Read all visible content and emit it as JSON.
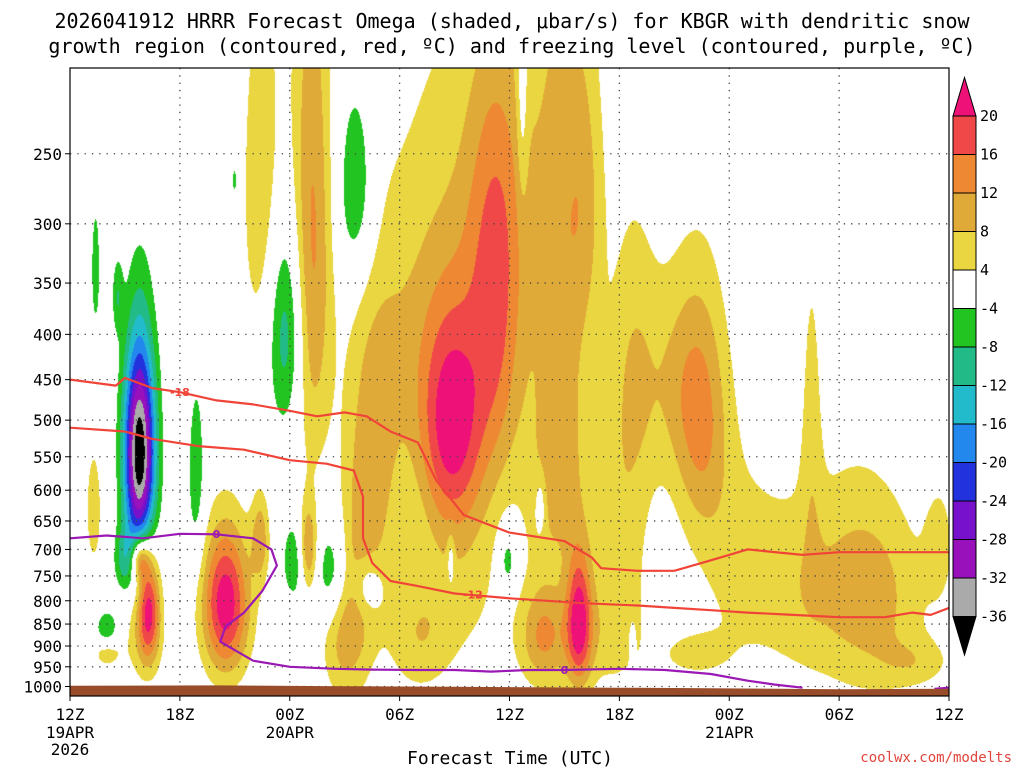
{
  "chart_data": {
    "type": "heatmap",
    "title_line1": "2026041912 HRRR Forecast Omega (shaded, μbar/s) for KBGR with dendritic snow",
    "title_line2": "growth region (contoured, red, ºC) and freezing level (contoured, purple, ºC)",
    "xlabel": "Forecast Time (UTC)",
    "ylabel": "",
    "credit": "coolwx.com/modelts",
    "x_range_hours": [
      0,
      48
    ],
    "y_range_hPa": [
      200,
      1025
    ],
    "x_ticks": [
      {
        "hour": 0,
        "label": "12Z",
        "sub1": "19APR",
        "sub2": "2026"
      },
      {
        "hour": 6,
        "label": "18Z"
      },
      {
        "hour": 12,
        "label": "00Z",
        "sub1": "20APR"
      },
      {
        "hour": 18,
        "label": "06Z"
      },
      {
        "hour": 24,
        "label": "12Z"
      },
      {
        "hour": 30,
        "label": "18Z"
      },
      {
        "hour": 36,
        "label": "00Z",
        "sub1": "21APR"
      },
      {
        "hour": 42,
        "label": "06Z"
      },
      {
        "hour": 48,
        "label": "12Z"
      }
    ],
    "y_ticks": [
      {
        "p": 250,
        "label": "250"
      },
      {
        "p": 300,
        "label": "300"
      },
      {
        "p": 350,
        "label": "350"
      },
      {
        "p": 400,
        "label": "400"
      },
      {
        "p": 450,
        "label": "450"
      },
      {
        "p": 500,
        "label": "500"
      },
      {
        "p": 550,
        "label": "550"
      },
      {
        "p": 600,
        "label": "600"
      },
      {
        "p": 650,
        "label": "650"
      },
      {
        "p": 700,
        "label": "700"
      },
      {
        "p": 750,
        "label": "750"
      },
      {
        "p": 800,
        "label": "800"
      },
      {
        "p": 850,
        "label": "850"
      },
      {
        "p": 900,
        "label": "900"
      },
      {
        "p": 950,
        "label": "950"
      },
      {
        "p": 1000,
        "label": "1000"
      }
    ],
    "colorbar": {
      "labels": [
        "20",
        "16",
        "12",
        "8",
        "4",
        "-4",
        "-8",
        "-12",
        "-16",
        "-20",
        "-24",
        "-28",
        "-32",
        "-36"
      ],
      "bins": [
        {
          "lo": 20,
          "hi": 24,
          "color": "#ee1177"
        },
        {
          "lo": 16,
          "hi": 20,
          "color": "#f04848"
        },
        {
          "lo": 12,
          "hi": 16,
          "color": "#ee8833"
        },
        {
          "lo": 8,
          "hi": 12,
          "color": "#e0aa38"
        },
        {
          "lo": 4,
          "hi": 8,
          "color": "#e9d640"
        },
        {
          "lo": -4,
          "hi": 4,
          "color": "#ffffff"
        },
        {
          "lo": -8,
          "hi": -4,
          "color": "#22c422"
        },
        {
          "lo": -12,
          "hi": -8,
          "color": "#22bb88"
        },
        {
          "lo": -16,
          "hi": -12,
          "color": "#22bbcc"
        },
        {
          "lo": -20,
          "hi": -16,
          "color": "#2288ee"
        },
        {
          "lo": -24,
          "hi": -20,
          "color": "#2233dd"
        },
        {
          "lo": -28,
          "hi": -24,
          "color": "#7711cc"
        },
        {
          "lo": -32,
          "hi": -28,
          "color": "#9911bb"
        },
        {
          "lo": -36,
          "hi": -32,
          "color": "#aaaaaa"
        },
        {
          "lo": -40,
          "hi": -36,
          "color": "#000000"
        }
      ]
    },
    "omega_features": [
      {
        "t": 8.5,
        "p": 805,
        "rt": 1.3,
        "rp": 155,
        "peak": 23
      },
      {
        "t": 4.3,
        "p": 810,
        "rt": 0.6,
        "rp": 115,
        "peak": 19
      },
      {
        "t": 3.8,
        "p": 718,
        "rt": 0.5,
        "rp": 40,
        "peak": 16
      },
      {
        "t": 4.0,
        "p": 880,
        "rt": 1.1,
        "rp": 110,
        "peak": 6
      },
      {
        "t": 1.3,
        "p": 630,
        "rt": 0.7,
        "rp": 160,
        "peak": 5
      },
      {
        "t": 2.0,
        "p": 915,
        "rt": 0.8,
        "rp": 40,
        "peak": 6
      },
      {
        "t": 10.4,
        "p": 680,
        "rt": 0.5,
        "rp": 80,
        "peak": 10
      },
      {
        "t": 10.5,
        "p": 275,
        "rt": 1.2,
        "rp": 150,
        "peak": 7
      },
      {
        "t": 13.2,
        "p": 320,
        "rt": 1.1,
        "rp": 220,
        "peak": 13
      },
      {
        "t": 13.0,
        "p": 700,
        "rt": 0.5,
        "rp": 80,
        "peak": 14
      },
      {
        "t": 14.8,
        "p": 870,
        "rt": 1.2,
        "rp": 160,
        "peak": 7
      },
      {
        "t": 16.5,
        "p": 585,
        "rt": 1.4,
        "rp": 200,
        "peak": 9
      },
      {
        "t": 15.6,
        "p": 800,
        "rt": 1.2,
        "rp": 220,
        "peak": 6
      },
      {
        "t": 17.5,
        "p": 410,
        "rt": 2.2,
        "rp": 160,
        "peak": 5
      },
      {
        "t": 20.8,
        "p": 505,
        "rt": 1.7,
        "rp": 150,
        "peak": 18
      },
      {
        "t": 20.2,
        "p": 350,
        "rt": 2.6,
        "rp": 230,
        "peak": 5
      },
      {
        "t": 23.3,
        "p": 390,
        "rt": 1.6,
        "rp": 180,
        "peak": 14
      },
      {
        "t": 23.5,
        "p": 260,
        "rt": 2.2,
        "rp": 120,
        "peak": 6
      },
      {
        "t": 21.5,
        "p": 720,
        "rt": 2.3,
        "rp": 230,
        "peak": 5
      },
      {
        "t": 19.0,
        "p": 875,
        "rt": 1.8,
        "rp": 140,
        "peak": 7
      },
      {
        "t": 26.8,
        "p": 330,
        "rt": 1.6,
        "rp": 270,
        "peak": 10
      },
      {
        "t": 26.5,
        "p": 600,
        "rt": 1.6,
        "rp": 150,
        "peak": 7
      },
      {
        "t": 28.2,
        "p": 280,
        "rt": 1.0,
        "rp": 110,
        "peak": 6
      },
      {
        "t": 27.5,
        "p": 885,
        "rt": 3.2,
        "rp": 120,
        "peak": 5
      },
      {
        "t": 27.8,
        "p": 840,
        "rt": 0.7,
        "rp": 150,
        "peak": 19
      },
      {
        "t": 25.8,
        "p": 875,
        "rt": 1.2,
        "rp": 120,
        "peak": 9
      },
      {
        "t": 30.0,
        "p": 700,
        "rt": 1.6,
        "rp": 260,
        "peak": 6
      },
      {
        "t": 30.8,
        "p": 440,
        "rt": 1.3,
        "rp": 180,
        "peak": 6
      },
      {
        "t": 33.0,
        "p": 450,
        "rt": 1.8,
        "rp": 130,
        "peak": 6
      },
      {
        "t": 34.5,
        "p": 500,
        "rt": 1.5,
        "rp": 170,
        "peak": 11
      },
      {
        "t": 36.5,
        "p": 720,
        "rt": 2.3,
        "rp": 220,
        "peak": 5
      },
      {
        "t": 40.5,
        "p": 490,
        "rt": 0.6,
        "rp": 220,
        "peak": 5
      },
      {
        "t": 40.0,
        "p": 780,
        "rt": 2.5,
        "rp": 200,
        "peak": 6
      },
      {
        "t": 43.0,
        "p": 775,
        "rt": 2.3,
        "rp": 230,
        "peak": 7
      },
      {
        "t": 45.0,
        "p": 800,
        "rt": 2.2,
        "rp": 200,
        "peak": 5
      },
      {
        "t": 47.5,
        "p": 690,
        "rt": 0.9,
        "rp": 120,
        "peak": 5
      },
      {
        "t": 46.3,
        "p": 940,
        "rt": 2.0,
        "rp": 60,
        "peak": 5
      },
      {
        "t": 34.0,
        "p": 920,
        "rt": 2.0,
        "rp": 60,
        "peak": 5
      },
      {
        "t": 3.8,
        "p": 545,
        "rt": 0.85,
        "rp": 150,
        "peak": -40
      },
      {
        "t": 3.0,
        "p": 720,
        "rt": 0.6,
        "rp": 60,
        "peak": -9
      },
      {
        "t": 2.6,
        "p": 362,
        "rt": 0.3,
        "rp": 35,
        "peak": -7
      },
      {
        "t": 2.0,
        "p": 860,
        "rt": 0.6,
        "rp": 40,
        "peak": -9
      },
      {
        "t": 6.9,
        "p": 585,
        "rt": 0.5,
        "rp": 150,
        "peak": -7
      },
      {
        "t": 9.0,
        "p": 268,
        "rt": 0.25,
        "rp": 20,
        "peak": -6
      },
      {
        "t": 11.8,
        "p": 395,
        "rt": 1.0,
        "rp": 110,
        "peak": -12
      },
      {
        "t": 12.3,
        "p": 720,
        "rt": 0.7,
        "rp": 80,
        "peak": -8
      },
      {
        "t": 14.3,
        "p": 745,
        "rt": 0.9,
        "rp": 100,
        "peak": -10
      },
      {
        "t": 15.6,
        "p": 275,
        "rt": 1.0,
        "rp": 70,
        "peak": -9
      },
      {
        "t": 16.2,
        "p": 770,
        "rt": 0.8,
        "rp": 60,
        "peak": -7
      },
      {
        "t": 20.8,
        "p": 720,
        "rt": 0.2,
        "rp": 50,
        "peak": -6
      },
      {
        "t": 23.9,
        "p": 720,
        "rt": 0.5,
        "rp": 60,
        "peak": -8
      },
      {
        "t": 25.7,
        "p": 625,
        "rt": 0.3,
        "rp": 50,
        "peak": -6
      },
      {
        "t": 30.7,
        "p": 895,
        "rt": 0.15,
        "rp": 40,
        "peak": -6
      },
      {
        "t": 24.7,
        "p": 215,
        "rt": 0.3,
        "rp": 70,
        "peak": -6
      },
      {
        "t": 1.4,
        "p": 340,
        "rt": 0.3,
        "rp": 70,
        "peak": -6
      }
    ],
    "dendritic_lines": [
      {
        "label": "-18",
        "label_at": [
          6.0,
          465
        ],
        "points": [
          [
            0,
            450
          ],
          [
            2.5,
            457
          ],
          [
            3.0,
            448
          ],
          [
            4.5,
            460
          ],
          [
            6.0,
            465
          ],
          [
            8.0,
            475
          ],
          [
            10.0,
            480
          ],
          [
            12.0,
            488
          ],
          [
            13.5,
            495
          ],
          [
            15.0,
            490
          ],
          [
            16.2,
            495
          ],
          [
            17.5,
            515
          ],
          [
            19.0,
            530
          ],
          [
            20.0,
            585
          ],
          [
            21.5,
            640
          ],
          [
            24.0,
            670
          ],
          [
            27.0,
            685
          ],
          [
            28.5,
            715
          ],
          [
            29.0,
            735
          ],
          [
            31.0,
            740
          ],
          [
            33.0,
            740
          ],
          [
            35.0,
            720
          ],
          [
            37.0,
            700
          ],
          [
            40.0,
            710
          ],
          [
            42.0,
            705
          ],
          [
            44.0,
            705
          ],
          [
            48.0,
            705
          ]
        ]
      },
      {
        "label": "-12",
        "label_at": [
          22.0,
          787
        ],
        "points": [
          [
            0,
            510
          ],
          [
            3.0,
            515
          ],
          [
            4.5,
            525
          ],
          [
            7.0,
            535
          ],
          [
            9.5,
            540
          ],
          [
            12.0,
            555
          ],
          [
            14.0,
            560
          ],
          [
            15.5,
            570
          ],
          [
            16.0,
            610
          ],
          [
            16.0,
            680
          ],
          [
            16.5,
            725
          ],
          [
            17.5,
            760
          ],
          [
            19.0,
            770
          ],
          [
            21.0,
            785
          ],
          [
            24.0,
            795
          ],
          [
            28.0,
            805
          ],
          [
            31.0,
            810
          ],
          [
            33.0,
            815
          ],
          [
            35.0,
            820
          ],
          [
            37.0,
            825
          ],
          [
            39.5,
            830
          ],
          [
            42.0,
            835
          ],
          [
            44.5,
            835
          ],
          [
            46.0,
            825
          ],
          [
            47.0,
            830
          ],
          [
            48.0,
            815
          ]
        ]
      }
    ],
    "freezing_lines": [
      {
        "label": "0",
        "label_at": [
          8.0,
          672
        ],
        "points": [
          [
            0,
            680
          ],
          [
            2.0,
            675
          ],
          [
            4.0,
            680
          ],
          [
            6.0,
            672
          ],
          [
            8.0,
            673
          ],
          [
            10.0,
            680
          ],
          [
            11.0,
            700
          ],
          [
            11.3,
            730
          ],
          [
            10.5,
            780
          ],
          [
            9.5,
            825
          ],
          [
            8.5,
            855
          ],
          [
            8.2,
            890
          ],
          [
            10.0,
            935
          ],
          [
            12.0,
            950
          ],
          [
            14.5,
            955
          ],
          [
            16.5,
            957
          ],
          [
            19.0,
            958
          ],
          [
            21.0,
            958
          ],
          [
            23.0,
            962
          ],
          [
            25.0,
            958
          ],
          [
            27.0,
            958
          ],
          [
            30.0,
            955
          ],
          [
            32.5,
            958
          ],
          [
            35.0,
            968
          ],
          [
            37.0,
            985
          ],
          [
            38.5,
            995
          ],
          [
            40.0,
            1003
          ]
        ]
      },
      {
        "label": "0",
        "label_at": [
          27.0,
          958
        ],
        "points": []
      },
      {
        "label": "",
        "label_at": [
          47.5,
          1005
        ],
        "points": [
          [
            47.2,
            1006
          ],
          [
            48.0,
            1003
          ]
        ]
      }
    ]
  }
}
